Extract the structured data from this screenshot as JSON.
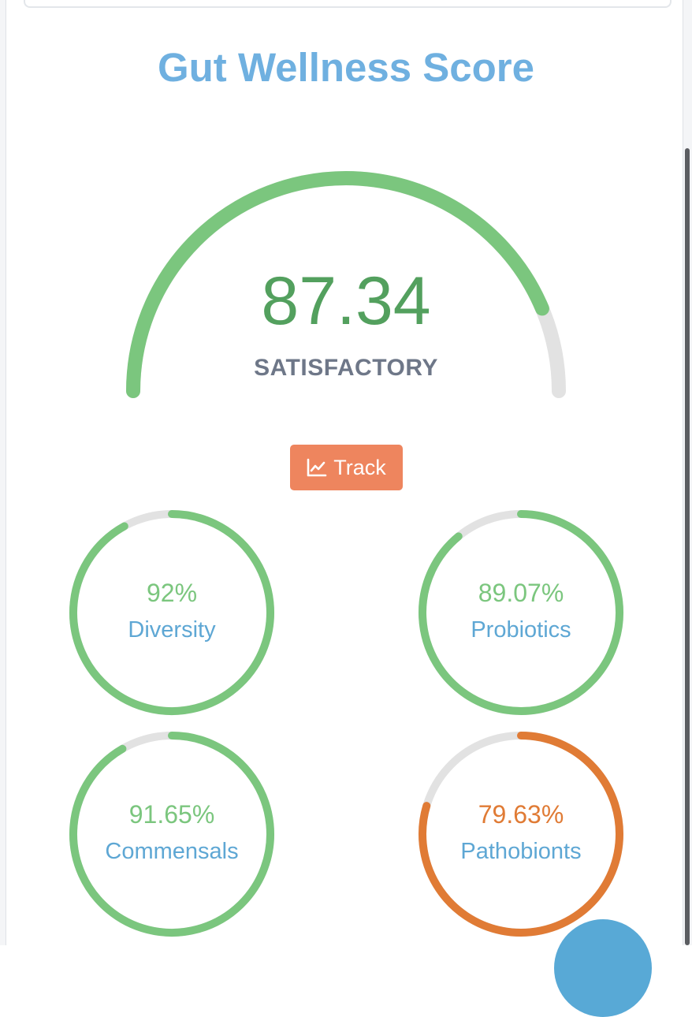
{
  "page": {
    "title": "Gut Wellness Score"
  },
  "score": {
    "value": "87.34",
    "fraction": 0.8734,
    "label": "SATISFACTORY",
    "color": "#7bc67e",
    "track_color": "#e2e2e2"
  },
  "track_button": {
    "label": "Track",
    "icon": "chart-line-icon",
    "color": "#ee855e"
  },
  "metrics": [
    {
      "key": "diversity",
      "value_text": "92%",
      "label": "Diversity",
      "fraction": 0.92,
      "color": "#7bc67e"
    },
    {
      "key": "probiotics",
      "value_text": "89.07%",
      "label": "Probiotics",
      "fraction": 0.8907,
      "color": "#7bc67e"
    },
    {
      "key": "commensals",
      "value_text": "91.65%",
      "label": "Commensals",
      "fraction": 0.9165,
      "color": "#7bc67e"
    },
    {
      "key": "pathobionts",
      "value_text": "79.63%",
      "label": "Pathobionts",
      "fraction": 0.7963,
      "color": "#e07b35"
    }
  ],
  "colors": {
    "title": "#6fb0e0",
    "score_text": "#53a05e",
    "label_text": "#6e7788",
    "metric_label": "#5ea7d4",
    "fab": "#58a9d6"
  }
}
